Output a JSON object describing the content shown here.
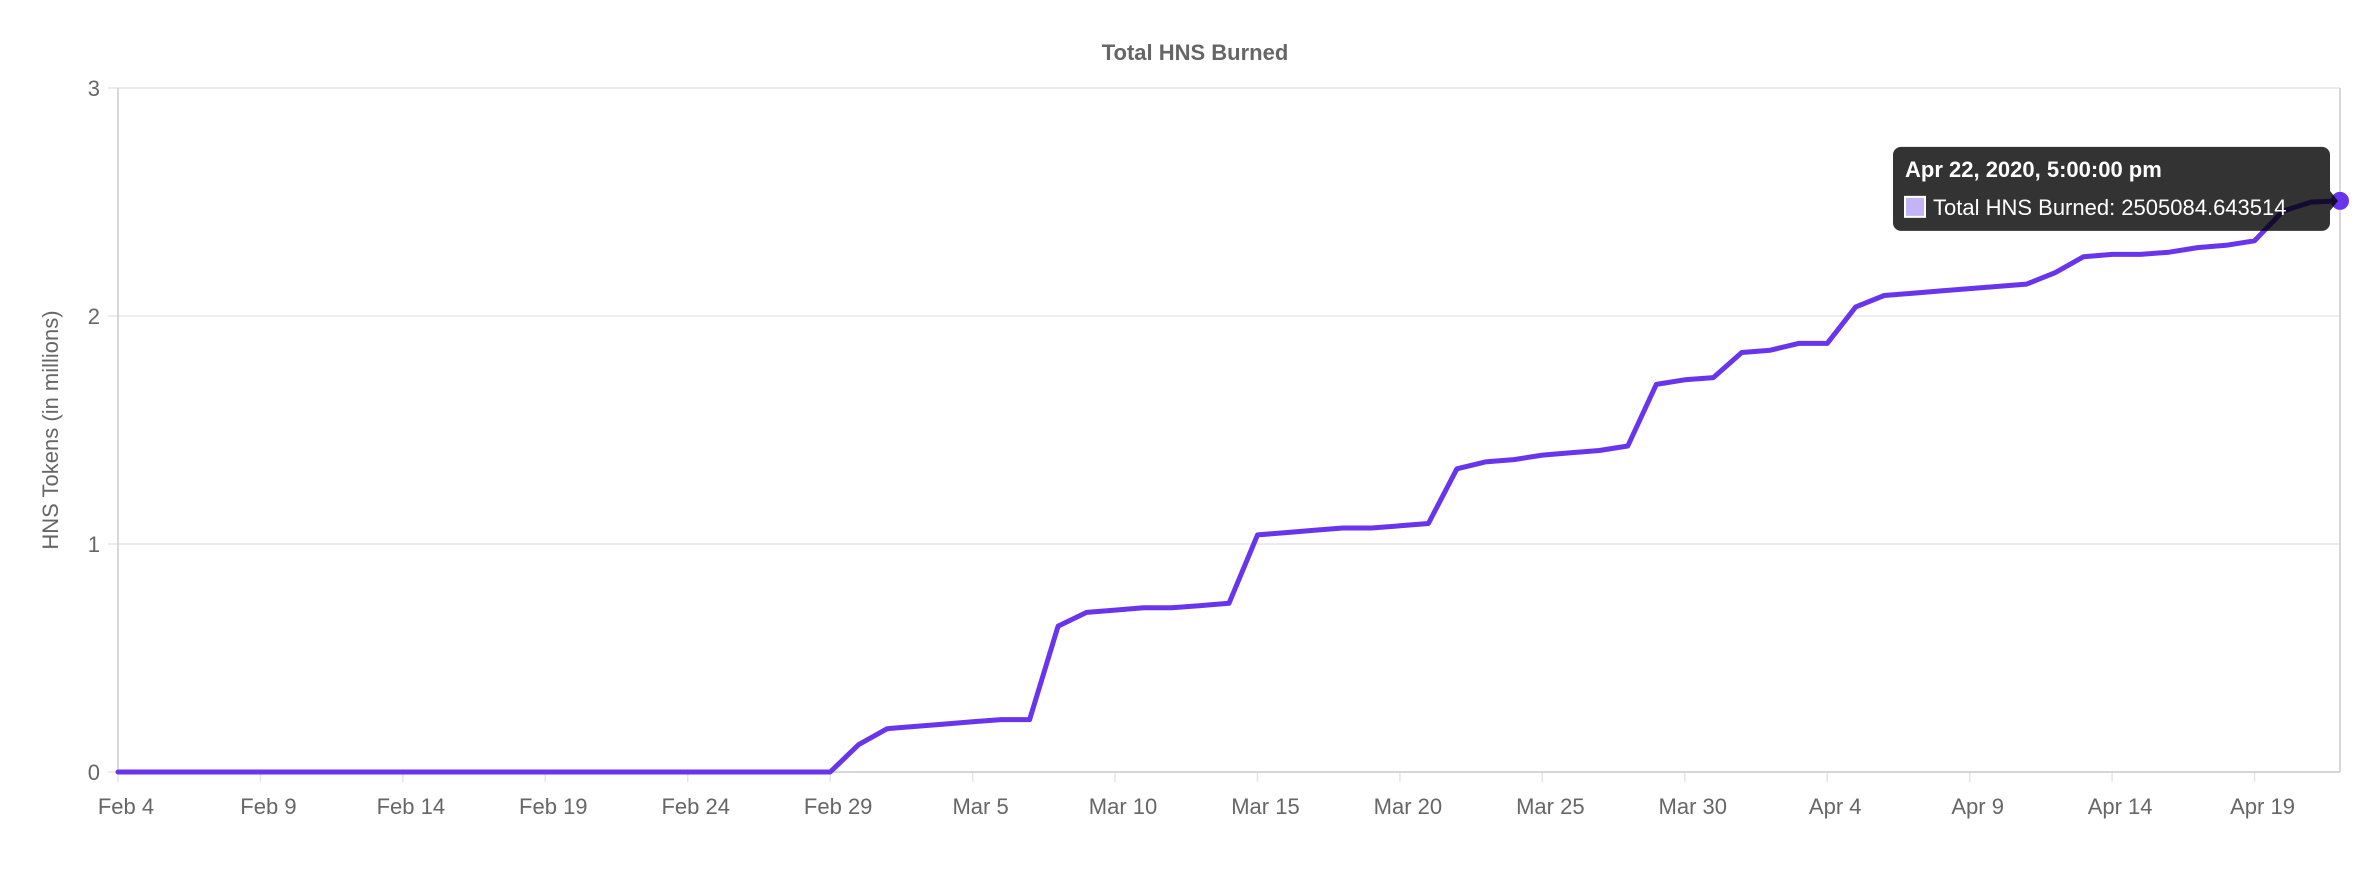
{
  "chart_data": {
    "type": "line",
    "title": "Total HNS Burned",
    "xlabel": "",
    "ylabel": "HNS Tokens (in millions)",
    "ylim": [
      0,
      3
    ],
    "y_ticks": [
      "0",
      "1",
      "2",
      "3"
    ],
    "x_tick_labels": [
      "Feb 4",
      "Feb 9",
      "Feb 14",
      "Feb 19",
      "Feb 24",
      "Feb 29",
      "Mar 5",
      "Mar 10",
      "Mar 15",
      "Mar 20",
      "Mar 25",
      "Mar 30",
      "Apr 4",
      "Apr 9",
      "Apr 14",
      "Apr 19"
    ],
    "xlim": [
      "2020-02-04",
      "2020-04-22"
    ],
    "grid": true,
    "series": [
      {
        "name": "Total HNS Burned",
        "color": "#6935ec",
        "points": [
          [
            "2020-02-04",
            0
          ],
          [
            "2020-02-29",
            0
          ],
          [
            "2020-03-01",
            0.12
          ],
          [
            "2020-03-02",
            0.19
          ],
          [
            "2020-03-03",
            0.2
          ],
          [
            "2020-03-04",
            0.21
          ],
          [
            "2020-03-05",
            0.22
          ],
          [
            "2020-03-06",
            0.23
          ],
          [
            "2020-03-07",
            0.23
          ],
          [
            "2020-03-08",
            0.64
          ],
          [
            "2020-03-09",
            0.7
          ],
          [
            "2020-03-10",
            0.71
          ],
          [
            "2020-03-11",
            0.72
          ],
          [
            "2020-03-12",
            0.72
          ],
          [
            "2020-03-13",
            0.73
          ],
          [
            "2020-03-14",
            0.74
          ],
          [
            "2020-03-15",
            1.04
          ],
          [
            "2020-03-16",
            1.05
          ],
          [
            "2020-03-17",
            1.06
          ],
          [
            "2020-03-18",
            1.07
          ],
          [
            "2020-03-19",
            1.07
          ],
          [
            "2020-03-20",
            1.08
          ],
          [
            "2020-03-21",
            1.09
          ],
          [
            "2020-03-22",
            1.33
          ],
          [
            "2020-03-23",
            1.36
          ],
          [
            "2020-03-24",
            1.37
          ],
          [
            "2020-03-25",
            1.39
          ],
          [
            "2020-03-26",
            1.4
          ],
          [
            "2020-03-27",
            1.41
          ],
          [
            "2020-03-28",
            1.43
          ],
          [
            "2020-03-29",
            1.7
          ],
          [
            "2020-03-30",
            1.72
          ],
          [
            "2020-03-31",
            1.73
          ],
          [
            "2020-04-01",
            1.84
          ],
          [
            "2020-04-02",
            1.85
          ],
          [
            "2020-04-03",
            1.88
          ],
          [
            "2020-04-04",
            1.88
          ],
          [
            "2020-04-05",
            2.04
          ],
          [
            "2020-04-06",
            2.09
          ],
          [
            "2020-04-07",
            2.1
          ],
          [
            "2020-04-08",
            2.11
          ],
          [
            "2020-04-09",
            2.12
          ],
          [
            "2020-04-10",
            2.13
          ],
          [
            "2020-04-11",
            2.14
          ],
          [
            "2020-04-12",
            2.19
          ],
          [
            "2020-04-13",
            2.26
          ],
          [
            "2020-04-14",
            2.27
          ],
          [
            "2020-04-15",
            2.27
          ],
          [
            "2020-04-16",
            2.28
          ],
          [
            "2020-04-17",
            2.3
          ],
          [
            "2020-04-18",
            2.31
          ],
          [
            "2020-04-19",
            2.33
          ],
          [
            "2020-04-20",
            2.46
          ],
          [
            "2020-04-21",
            2.5
          ],
          [
            "2020-04-22",
            2.505
          ]
        ]
      }
    ],
    "tooltip": {
      "title": "Apr 22, 2020, 5:00:00 pm",
      "label": "Total HNS Burned: 2505084.643514",
      "point": [
        "2020-04-22",
        2.505
      ]
    }
  }
}
